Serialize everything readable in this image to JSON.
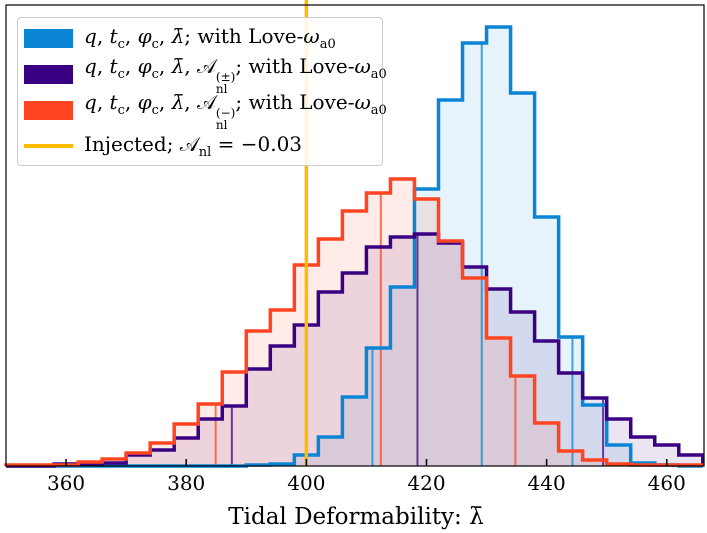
{
  "chart_data": {
    "type": "histogram",
    "xlabel": "Tidal Deformability: λ̄",
    "xlim": [
      350,
      466.2
    ],
    "ylim": [
      0,
      461
    ],
    "x_ticks": [
      360,
      380,
      400,
      420,
      440,
      460
    ],
    "x_tick_labels": [
      "360",
      "380",
      "400",
      "420",
      "440",
      "460"
    ],
    "y_ticks": [],
    "grid": false,
    "legend_position": "top-left",
    "bin_edges": [
      350,
      354,
      358,
      362,
      366,
      370,
      374,
      378,
      382,
      386,
      390,
      394,
      398,
      402,
      406,
      410,
      414,
      418,
      422,
      426,
      430,
      434,
      438,
      442,
      446,
      450,
      454,
      458,
      462,
      466
    ],
    "series": [
      {
        "name": "q, tc, φc, λ̄; with Love-ωa0",
        "color": "#0a85d6",
        "values": [
          0,
          0,
          0,
          0,
          0,
          0,
          0,
          0,
          0,
          0,
          1,
          2,
          11,
          29,
          69,
          118,
          179,
          277,
          366,
          423,
          439,
          373,
          249,
          129,
          61,
          21,
          3,
          1,
          0
        ],
        "quantile_lines": [
          411.0,
          429.2,
          444.3
        ]
      },
      {
        "name": "q, tc, φc, λ̄, Anl(±); with Love-ωa0",
        "color": "#3a0084",
        "values": [
          0,
          0,
          2,
          2,
          3,
          11,
          16,
          28,
          47,
          60,
          97,
          120,
          141,
          174,
          193,
          219,
          229,
          232,
          223,
          199,
          177,
          154,
          125,
          93,
          68,
          47,
          29,
          21,
          11
        ],
        "quantile_lines": [
          387.6,
          418.5,
          449.4
        ]
      },
      {
        "name": "q, tc, φc, λ̄, Anl(−); with Love-ωa0",
        "color": "#ff4422",
        "values": [
          1,
          1,
          1,
          4,
          7,
          13,
          23,
          42,
          62,
          94,
          135,
          156,
          201,
          227,
          255,
          273,
          287,
          267,
          225,
          188,
          128,
          90,
          43,
          15,
          6,
          2,
          1,
          1,
          1
        ],
        "quantile_lines": [
          384.9,
          412.4,
          434.8
        ]
      }
    ],
    "injected": {
      "name": "Injected; Anl = −0.03",
      "value": 400,
      "color": "#ffbb00"
    }
  },
  "legend": {
    "entries": [
      {
        "color": "#0a85d6",
        "kind": "patch",
        "segments": [
          {
            "t": "q",
            "c": "i"
          },
          {
            "t": ", ",
            "c": "n"
          },
          {
            "t": "t",
            "c": "i"
          },
          {
            "t": "c",
            "c": "sub"
          },
          {
            "t": ", ",
            "c": "n"
          },
          {
            "t": "φ",
            "c": "i"
          },
          {
            "t": "c",
            "c": "sub"
          },
          {
            "t": ", ",
            "c": "n"
          },
          {
            "t": "λ̄",
            "c": "i"
          },
          {
            "t": "; with Love-",
            "c": "n"
          },
          {
            "t": "ω",
            "c": "i"
          },
          {
            "t": "a0",
            "c": "sub"
          }
        ]
      },
      {
        "color": "#3a0084",
        "kind": "patch",
        "segments": [
          {
            "t": "q",
            "c": "i"
          },
          {
            "t": ", ",
            "c": "n"
          },
          {
            "t": "t",
            "c": "i"
          },
          {
            "t": "c",
            "c": "sub"
          },
          {
            "t": ", ",
            "c": "n"
          },
          {
            "t": "φ",
            "c": "i"
          },
          {
            "t": "c",
            "c": "sub"
          },
          {
            "t": ", ",
            "c": "n"
          },
          {
            "t": "λ̄",
            "c": "i"
          },
          {
            "t": ", ",
            "c": "n"
          },
          {
            "t": "𝒜",
            "c": "n"
          },
          {
            "sup": "(±)",
            "sub": "nl",
            "c": "ss"
          },
          {
            "t": "; with Love-",
            "c": "n"
          },
          {
            "t": "ω",
            "c": "i"
          },
          {
            "t": "a0",
            "c": "sub"
          }
        ]
      },
      {
        "color": "#ff4422",
        "kind": "patch",
        "segments": [
          {
            "t": "q",
            "c": "i"
          },
          {
            "t": ", ",
            "c": "n"
          },
          {
            "t": "t",
            "c": "i"
          },
          {
            "t": "c",
            "c": "sub"
          },
          {
            "t": ", ",
            "c": "n"
          },
          {
            "t": "φ",
            "c": "i"
          },
          {
            "t": "c",
            "c": "sub"
          },
          {
            "t": ", ",
            "c": "n"
          },
          {
            "t": "λ̄",
            "c": "i"
          },
          {
            "t": ", ",
            "c": "n"
          },
          {
            "t": "𝒜",
            "c": "n"
          },
          {
            "sup": "(−)",
            "sub": "nl",
            "c": "ss"
          },
          {
            "t": "; with Love-",
            "c": "n"
          },
          {
            "t": "ω",
            "c": "i"
          },
          {
            "t": "a0",
            "c": "sub"
          }
        ]
      },
      {
        "color": "#ffbb00",
        "kind": "line",
        "segments": [
          {
            "t": "Injected; ",
            "c": "n"
          },
          {
            "t": "𝒜",
            "c": "n"
          },
          {
            "t": "nl",
            "c": "sub"
          },
          {
            "t": " = −0.03",
            "c": "n"
          }
        ]
      }
    ]
  }
}
